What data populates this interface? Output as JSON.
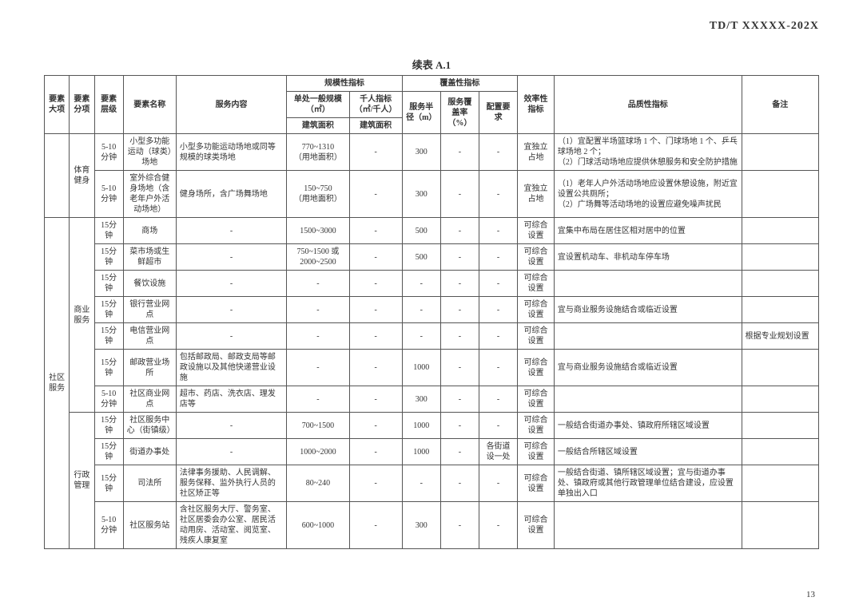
{
  "doc_header": "TD/T   XXXXX-202X",
  "table_title": "续表 A.1",
  "page_number": "13",
  "headers": {
    "major": "要素大项",
    "sub": "要素分项",
    "level": "要素层级",
    "name": "要素名称",
    "content": "服务内容",
    "scale_group": "规模性指标",
    "cover_group": "覆盖性指标",
    "unit_scale": "单处一般规模（㎡）",
    "thousand": "千人指标（㎡/千人）",
    "build_area1": "建筑面积",
    "build_area2": "建筑面积",
    "radius": "服务半径（m）",
    "cover_rate": "服务覆盖率（%）",
    "config": "配置要求",
    "efficiency": "效率性指标",
    "quality": "品质性指标",
    "remark": "备注"
  },
  "cats": {
    "major": "社区服务",
    "sports": "体育健身",
    "commerce": "商业服务",
    "admin": "行政管理"
  },
  "rows": [
    {
      "level": "5-10分钟",
      "name": "小型多功能运动（球类）场地",
      "content": "小型多功能运动场地或同等规模的球类场地",
      "scale": "770~1310\n（用地面积）",
      "thousand": "-",
      "radius": "300",
      "cover": "-",
      "config": "-",
      "eff": "宜独立占地",
      "quality": "（1）宜配置半场篮球场 1 个、门球场地 1 个、乒乓球场地 2 个；\n（2）门球活动场地应提供休憩服务和安全防护措施",
      "remark": ""
    },
    {
      "level": "5-10分钟",
      "name": "室外综合健身场地（含老年户外活动场地）",
      "content": "健身场所，含广场舞场地",
      "scale": "150~750\n（用地面积）",
      "thousand": "-",
      "radius": "300",
      "cover": "-",
      "config": "-",
      "eff": "宜独立占地",
      "quality": "（1）老年人户外活动场地应设置休憩设施，附近宜设置公共厕所；\n（2）广场舞等活动场地的设置应避免噪声扰民",
      "remark": ""
    },
    {
      "level": "15分钟",
      "name": "商场",
      "content": "-",
      "scale": "1500~3000",
      "thousand": "-",
      "radius": "500",
      "cover": "-",
      "config": "-",
      "eff": "可综合设置",
      "quality": "宜集中布局在居住区相对居中的位置",
      "remark": ""
    },
    {
      "level": "15分钟",
      "name": "菜市场或生鲜超市",
      "content": "-",
      "scale": "750~1500 或\n2000~2500",
      "thousand": "-",
      "radius": "500",
      "cover": "-",
      "config": "-",
      "eff": "可综合设置",
      "quality": "宜设置机动车、非机动车停车场",
      "remark": ""
    },
    {
      "level": "15分钟",
      "name": "餐饮设施",
      "content": "-",
      "scale": "-",
      "thousand": "-",
      "radius": "-",
      "cover": "-",
      "config": "-",
      "eff": "可综合设置",
      "quality": "",
      "remark": ""
    },
    {
      "level": "15分钟",
      "name": "银行营业网点",
      "content": "-",
      "scale": "-",
      "thousand": "-",
      "radius": "-",
      "cover": "-",
      "config": "-",
      "eff": "可综合设置",
      "quality": "宜与商业服务设施结合或临近设置",
      "remark": ""
    },
    {
      "level": "15分钟",
      "name": "电信营业网点",
      "content": "-",
      "scale": "-",
      "thousand": "-",
      "radius": "-",
      "cover": "-",
      "config": "-",
      "eff": "可综合设置",
      "quality": "",
      "remark": "根据专业规划设置"
    },
    {
      "level": "15分钟",
      "name": "邮政营业场所",
      "content": "包括邮政局、邮政支局等邮政设施以及其他快递营业设施",
      "scale": "-",
      "thousand": "-",
      "radius": "1000",
      "cover": "-",
      "config": "-",
      "eff": "可综合设置",
      "quality": "宜与商业服务设施结合或临近设置",
      "remark": ""
    },
    {
      "level": "5-10分钟",
      "name": "社区商业网点",
      "content": "超市、药店、洗衣店、理发店等",
      "scale": "-",
      "thousand": "-",
      "radius": "300",
      "cover": "-",
      "config": "-",
      "eff": "可综合设置",
      "quality": "",
      "remark": ""
    },
    {
      "level": "15分钟",
      "name": "社区服务中心（街镇级）",
      "content": "-",
      "scale": "700~1500",
      "thousand": "-",
      "radius": "1000",
      "cover": "-",
      "config": "-",
      "eff": "可综合设置",
      "quality": "一般结合街道办事处、镇政府所辖区域设置",
      "remark": ""
    },
    {
      "level": "15分钟",
      "name": "街道办事处",
      "content": "-",
      "scale": "1000~2000",
      "thousand": "-",
      "radius": "1000",
      "cover": "-",
      "config": "各街道设一处",
      "eff": "可综合设置",
      "quality": "一般结合所辖区域设置",
      "remark": ""
    },
    {
      "level": "15分钟",
      "name": "司法所",
      "content": "法律事务援助、人民调解、服务保释、监外执行人员的社区矫正等",
      "scale": "80~240",
      "thousand": "-",
      "radius": "-",
      "cover": "-",
      "config": "-",
      "eff": "可综合设置",
      "quality": "一般结合街道、镇所辖区域设置；宜与街道办事处、镇政府或其他行政管理单位结合建设，应设置单独出入口",
      "remark": ""
    },
    {
      "level": "5-10分钟",
      "name": "社区服务站",
      "content": "含社区服务大厅、警务室、社区居委会办公室、居民活动用房、活动室、阅览室、残疾人康复室",
      "scale": "600~1000",
      "thousand": "-",
      "radius": "300",
      "cover": "-",
      "config": "-",
      "eff": "可综合设置",
      "quality": "",
      "remark": ""
    }
  ]
}
